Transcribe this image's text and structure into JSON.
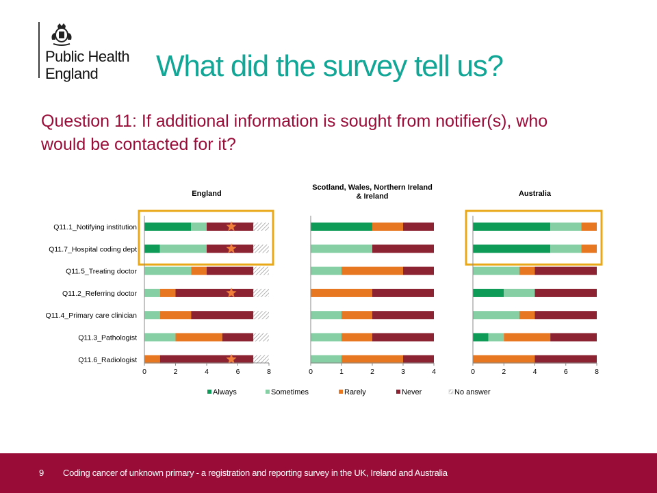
{
  "header": {
    "logo_text": "Public Health England",
    "title": "What did the survey tell us?",
    "question": "Question 11: If additional information is sought from notifier(s), who would be contacted for it?"
  },
  "footer": {
    "page_number": "9",
    "text": "Coding cancer of unknown primary - a registration and reporting survey in the UK, Ireland and Australia"
  },
  "chart_data": [
    {
      "type": "bar",
      "orientation": "horizontal",
      "stacked": true,
      "title": "England",
      "categories": [
        "Q11.1_Notifying institution",
        "Q11.7_Hospital coding dept",
        "Q11.5_Treating doctor",
        "Q11.2_Referring doctor",
        "Q11.4_Primary care clinician",
        "Q11.3_Pathologist",
        "Q11.6_Radiologist"
      ],
      "series": [
        {
          "name": "Always",
          "values": [
            3,
            1,
            0,
            0,
            0,
            0,
            0
          ]
        },
        {
          "name": "Sometimes",
          "values": [
            1,
            3,
            3,
            1,
            1,
            2,
            0
          ]
        },
        {
          "name": "Rarely",
          "values": [
            0,
            0,
            1,
            1,
            2,
            3,
            1
          ]
        },
        {
          "name": "Never",
          "values": [
            3,
            3,
            3,
            5,
            4,
            2,
            6
          ]
        },
        {
          "name": "No answer",
          "values": [
            1,
            1,
            1,
            1,
            1,
            1,
            1
          ]
        }
      ],
      "xlim": [
        0,
        8
      ],
      "xticks": [
        "0",
        "2",
        "4",
        "6",
        "8"
      ],
      "starred": [
        true,
        true,
        false,
        true,
        false,
        false,
        true
      ],
      "highlighted_rows": [
        0,
        1
      ]
    },
    {
      "type": "bar",
      "orientation": "horizontal",
      "stacked": true,
      "title": "Scotland, Wales, Northern Ireland & Ireland",
      "categories": [
        "Q11.1_Notifying institution",
        "Q11.7_Hospital coding dept",
        "Q11.5_Treating doctor",
        "Q11.2_Referring doctor",
        "Q11.4_Primary care clinician",
        "Q11.3_Pathologist",
        "Q11.6_Radiologist"
      ],
      "series": [
        {
          "name": "Always",
          "values": [
            2,
            0,
            0,
            0,
            0,
            0,
            0
          ]
        },
        {
          "name": "Sometimes",
          "values": [
            0,
            2,
            1,
            0,
            1,
            1,
            1
          ]
        },
        {
          "name": "Rarely",
          "values": [
            1,
            0,
            2,
            2,
            1,
            1,
            2
          ]
        },
        {
          "name": "Never",
          "values": [
            1,
            2,
            1,
            2,
            2,
            2,
            1
          ]
        },
        {
          "name": "No answer",
          "values": [
            0,
            0,
            0,
            0,
            0,
            0,
            0
          ]
        }
      ],
      "xlim": [
        0,
        4
      ],
      "xticks": [
        "0",
        "1",
        "2",
        "3",
        "4"
      ]
    },
    {
      "type": "bar",
      "orientation": "horizontal",
      "stacked": true,
      "title": "Australia",
      "categories": [
        "Q11.1_Notifying institution",
        "Q11.7_Hospital coding dept",
        "Q11.5_Treating doctor",
        "Q11.2_Referring doctor",
        "Q11.4_Primary care clinician",
        "Q11.3_Pathologist",
        "Q11.6_Radiologist"
      ],
      "series": [
        {
          "name": "Always",
          "values": [
            5,
            5,
            0,
            2,
            0,
            1,
            0
          ]
        },
        {
          "name": "Sometimes",
          "values": [
            2,
            2,
            3,
            2,
            3,
            1,
            0
          ]
        },
        {
          "name": "Rarely",
          "values": [
            1,
            1,
            1,
            0,
            1,
            3,
            4
          ]
        },
        {
          "name": "Never",
          "values": [
            0,
            0,
            4,
            4,
            4,
            3,
            4
          ]
        },
        {
          "name": "No answer",
          "values": [
            0,
            0,
            0,
            0,
            0,
            0,
            0
          ]
        }
      ],
      "xlim": [
        0,
        8
      ],
      "xticks": [
        "0",
        "2",
        "4",
        "6",
        "8"
      ],
      "highlighted_rows": [
        0,
        1
      ]
    }
  ],
  "legend": {
    "items": [
      {
        "label": "Always",
        "color": "#0e9a57"
      },
      {
        "label": "Sometimes",
        "color": "#86cfa5"
      },
      {
        "label": "Rarely",
        "color": "#e87722"
      },
      {
        "label": "Never",
        "color": "#8b2332"
      },
      {
        "label": "No answer",
        "color": "hatch"
      }
    ]
  },
  "colors": {
    "series": [
      "#0e9a57",
      "#86cfa5",
      "#e87722",
      "#8b2332",
      "hatch"
    ],
    "highlight_box": "#e8a818",
    "star": "#f07f3c",
    "title": "#11a696",
    "question": "#9a0c38",
    "footer_bg": "#9a0c38"
  }
}
